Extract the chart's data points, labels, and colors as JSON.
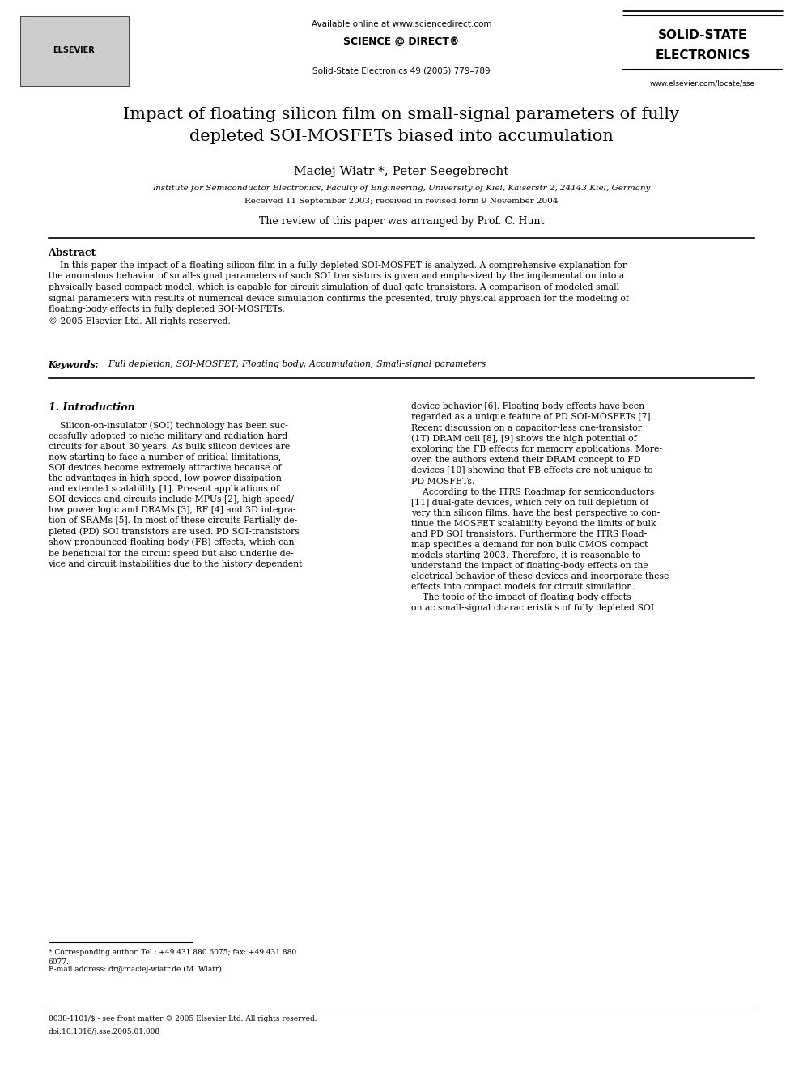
{
  "bg_color": "#ffffff",
  "header": {
    "available_online": "Available online at www.sciencedirect.com",
    "sciencedirect_text": "SCIENCE @ DIRECT®",
    "journal_ref": "Solid-State Electronics 49 (2005) 779–789",
    "journal_name_line1": "SOLID-STATE",
    "journal_name_line2": "ELECTRONICS",
    "journal_url": "www.elsevier.com/locate/sse"
  },
  "title": "Impact of floating silicon film on small-signal parameters of fully\ndepleted SOI-MOSFETs biased into accumulation",
  "authors": "Maciej Wiatr *, Peter Seegebrecht",
  "affiliation": "Institute for Semiconductor Electronics, Faculty of Engineering, University of Kiel, Kaiserstr 2, 24143 Kiel, Germany",
  "received": "Received 11 September 2003; received in revised form 9 November 2004",
  "review_note": "The review of this paper was arranged by Prof. C. Hunt",
  "abstract_title": "Abstract",
  "abstract_text": "    In this paper the impact of a floating silicon film in a fully depleted SOI-MOSFET is analyzed. A comprehensive explanation for\nthe anomalous behavior of small-signal parameters of such SOI transistors is given and emphasized by the implementation into a\nphysically based compact model, which is capable for circuit simulation of dual-gate transistors. A comparison of modeled small-\nsignal parameters with results of numerical device simulation confirms the presented, truly physical approach for the modeling of\nfloating-body effects in fully depleted SOI-MOSFETs.\n© 2005 Elsevier Ltd. All rights reserved.",
  "keywords_label": "Keywords:",
  "keywords": "  Full depletion; SOI-MOSFET; Floating body; Accumulation; Small-signal parameters",
  "section1_title": "1. Introduction",
  "section1_col1": "    Silicon-on-insulator (SOI) technology has been suc-\ncessfully adopted to niche military and radiation-hard\ncircuits for about 30 years. As bulk silicon devices are\nnow starting to face a number of critical limitations,\nSOI devices become extremely attractive because of\nthe advantages in high speed, low power dissipation\nand extended scalability [1]. Present applications of\nSOI devices and circuits include MPUs [2], high speed/\nlow power logic and DRAMs [3], RF [4] and 3D integra-\ntion of SRAMs [5]. In most of these circuits Partially de-\npleted (PD) SOI transistors are used. PD SOI-transistors\nshow pronounced floating-body (FB) effects, which can\nbe beneficial for the circuit speed but also underlie de-\nvice and circuit instabilities due to the history dependent",
  "section1_col2": "device behavior [6]. Floating-body effects have been\nregarded as a unique feature of PD SOI-MOSFETs [7].\nRecent discussion on a capacitor-less one-transistor\n(1T) DRAM cell [8], [9] shows the high potential of\nexploring the FB effects for memory applications. More-\nover, the authors extend their DRAM concept to FD\ndevices [10] showing that FB effects are not unique to\nPD MOSFETs.\n    According to the ITRS Roadmap for semiconductors\n[11] dual-gate devices, which rely on full depletion of\nvery thin silicon films, have the best perspective to con-\ntinue the MOSFET scalability beyond the limits of bulk\nand PD SOI transistors. Furthermore the ITRS Road-\nmap specifies a demand for non bulk CMOS compact\nmodels starting 2003. Therefore, it is reasonable to\nunderstand the impact of floating-body effects on the\nelectrical behavior of these devices and incorporate these\neffects into compact models for circuit simulation.\n    The topic of the impact of floating body effects\non ac small-signal characteristics of fully depleted SOI",
  "footnote1": "* Corresponding author. Tel.: +49 431 880 6075; fax: +49 431 880\n6077.",
  "footnote2": "E-mail address: dr@maciej-wiatr.de (M. Wiatr).",
  "footer_line1": "0038-1101/$ - see front matter © 2005 Elsevier Ltd. All rights reserved.",
  "footer_line2": "doi:10.1016/j.sse.2005.01.008"
}
